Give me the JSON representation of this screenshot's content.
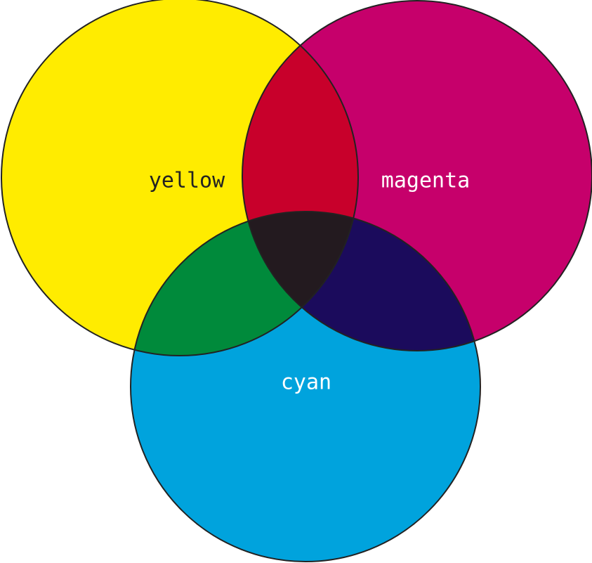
{
  "circles": [
    {
      "label": "yellow"
    },
    {
      "label": "magenta"
    },
    {
      "label": "cyan"
    }
  ]
}
